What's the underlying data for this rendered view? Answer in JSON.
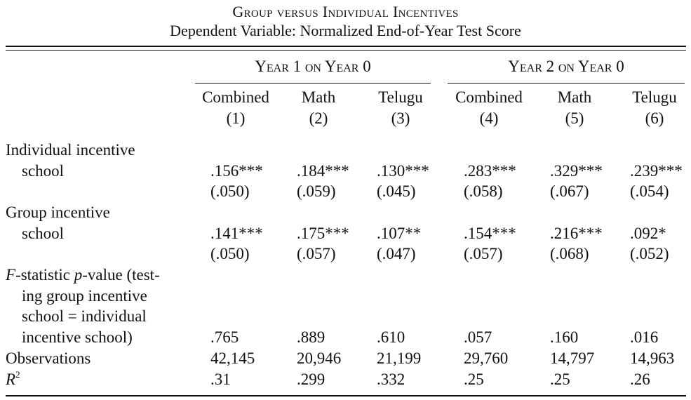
{
  "table": {
    "title": "Group versus Individual Incentives",
    "subtitle": "Dependent Variable: Normalized End-of-Year Test Score",
    "groups": [
      "Year 1 on Year 0",
      "Year 2 on Year 0"
    ],
    "columns": [
      {
        "name": "Combined",
        "num": "(1)"
      },
      {
        "name": "Math",
        "num": "(2)"
      },
      {
        "name": "Telugu",
        "num": "(3)"
      },
      {
        "name": "Combined",
        "num": "(4)"
      },
      {
        "name": "Math",
        "num": "(5)"
      },
      {
        "name": "Telugu",
        "num": "(6)"
      }
    ],
    "rows": {
      "individual": {
        "label1": "Individual incentive",
        "label2": "school",
        "coef": [
          ".156***",
          ".184***",
          ".130***",
          ".283***",
          ".329***",
          ".239***"
        ],
        "se": [
          "(.050)",
          "(.059)",
          "(.045)",
          "(.058)",
          "(.067)",
          "(.054)"
        ]
      },
      "group": {
        "label1": "Group incentive",
        "label2": "school",
        "coef": [
          ".141***",
          ".175***",
          ".107**",
          ".154***",
          ".216***",
          ".092*"
        ],
        "se": [
          "(.050)",
          "(.057)",
          "(.047)",
          "(.057)",
          "(.068)",
          "(.052)"
        ]
      },
      "ftest": {
        "label_f": "F",
        "label_a": "-statistic ",
        "label_p": "p",
        "label_b": "-value (test-",
        "label2": "ing group incentive",
        "label3": "school = individual",
        "label4": "incentive school)",
        "values": [
          ".765",
          ".889",
          ".610",
          ".057",
          ".160",
          ".016"
        ]
      },
      "obs": {
        "label": "Observations",
        "values": [
          "42,145",
          "20,946",
          "21,199",
          "29,760",
          "14,797",
          "14,963"
        ]
      },
      "r2": {
        "label_r": "R",
        "label_sup": "2",
        "values": [
          ".31",
          ".299",
          ".332",
          ".25",
          ".25",
          ".26"
        ]
      }
    }
  }
}
